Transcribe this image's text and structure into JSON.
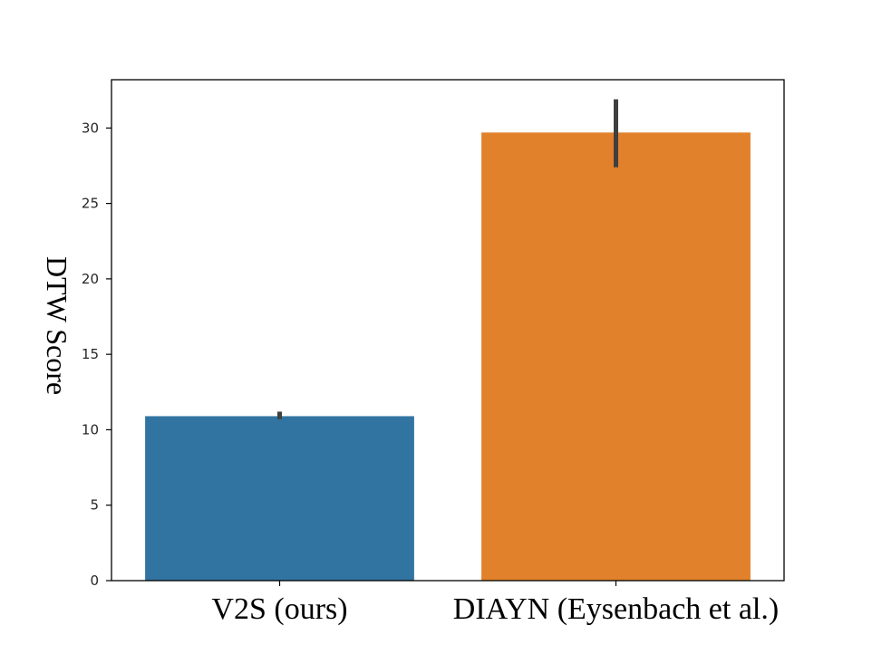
{
  "chart_data": {
    "type": "bar",
    "title": "",
    "xlabel": "",
    "ylabel": "DTW Score",
    "categories": [
      "V2S (ours)",
      "DIAYN (Eysenbach et al.)"
    ],
    "values": [
      10.9,
      29.7
    ],
    "error_low": [
      10.7,
      27.4
    ],
    "error_high": [
      11.2,
      31.9
    ],
    "ylim": [
      0,
      33.2
    ],
    "yticks": [
      0,
      5,
      10,
      15,
      20,
      25,
      30
    ],
    "grid": false,
    "legend": "none",
    "colors": [
      "#3274a1",
      "#e1812c"
    ],
    "error_color": "#3f3f3f"
  }
}
